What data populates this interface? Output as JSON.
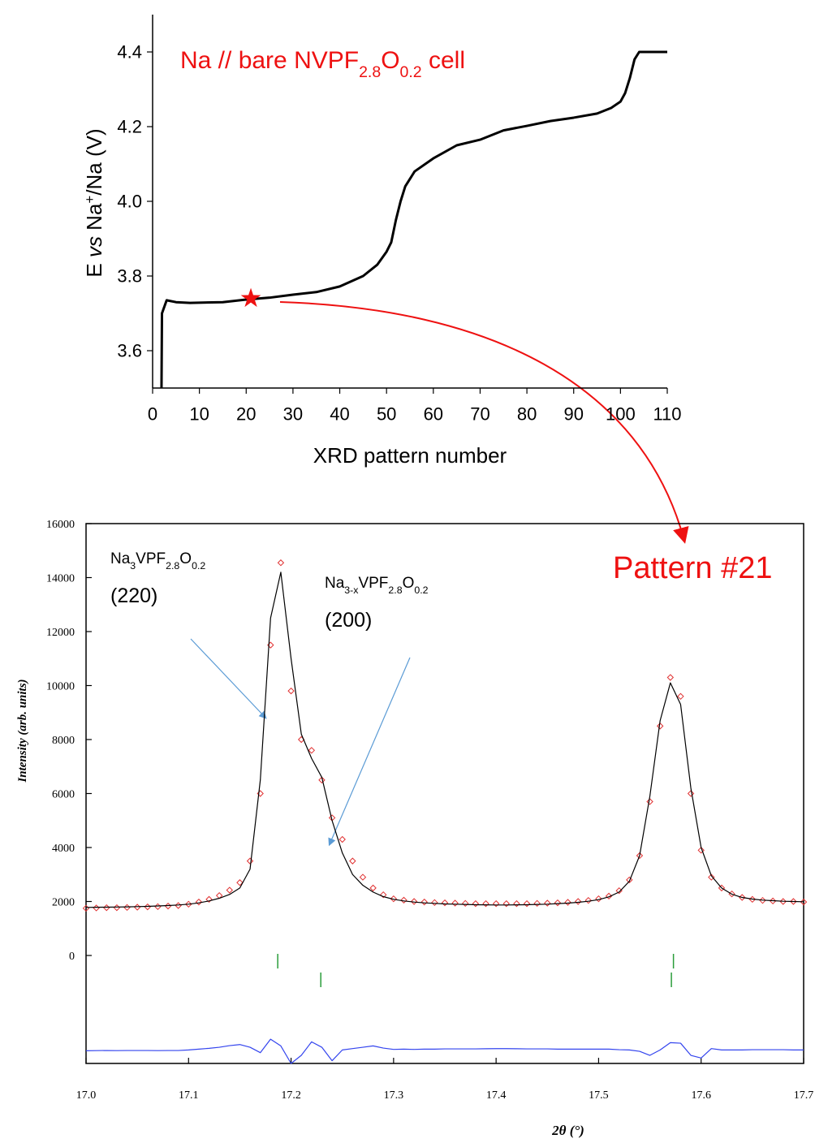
{
  "chart_data": [
    {
      "type": "line",
      "annotation": {
        "color": "#ee1111",
        "runs": [
          {
            "text": "Na // bare NVPF"
          },
          {
            "text": "2.8",
            "sub": true
          },
          {
            "text": "O"
          },
          {
            "text": "0.2",
            "sub": true
          },
          {
            "text": " cell"
          }
        ]
      },
      "x_label": "XRD pattern number",
      "y_label": {
        "runs": [
          {
            "text": "E "
          },
          {
            "text": "vs",
            "italic": true
          },
          {
            "text": " Na"
          },
          {
            "text": "+",
            "sup": true
          },
          {
            "text": "/Na (V)"
          }
        ]
      },
      "x": [
        1.9,
        2,
        3,
        5,
        8,
        15,
        20,
        25,
        30,
        35,
        40,
        45,
        48,
        50,
        51,
        52,
        53,
        54,
        56,
        60,
        65,
        70,
        75,
        80,
        85,
        90,
        95,
        98,
        100,
        101,
        102,
        103,
        104,
        110
      ],
      "series": [
        {
          "color": "#000000",
          "values": [
            3.5,
            3.7,
            3.735,
            3.73,
            3.728,
            3.73,
            3.737,
            3.742,
            3.75,
            3.757,
            3.772,
            3.8,
            3.83,
            3.865,
            3.89,
            3.95,
            4.0,
            4.04,
            4.08,
            4.115,
            4.15,
            4.165,
            4.19,
            4.202,
            4.215,
            4.224,
            4.235,
            4.25,
            4.267,
            4.29,
            4.33,
            4.38,
            4.4,
            4.4
          ]
        }
      ],
      "marker": {
        "x": 21,
        "y": 3.74,
        "color": "#ee1111"
      },
      "xlim": [
        0,
        110
      ],
      "xticks": [
        0,
        10,
        20,
        30,
        40,
        50,
        60,
        70,
        80,
        90,
        100,
        110
      ],
      "ylim": [
        3.5,
        4.5
      ],
      "yticks": [
        3.6,
        3.8,
        {
          "value": 4,
          "label": "4.0"
        },
        4.2,
        4.4
      ]
    },
    {
      "type": "line",
      "x_label": "2θ (°)",
      "y_label": "Intensity (arb. units)",
      "annotations": [
        {
          "color": "#000000",
          "runs": [
            {
              "text": "Na"
            },
            {
              "text": "3",
              "sub": true
            },
            {
              "text": "VPF"
            },
            {
              "text": "2.8",
              "sub": true
            },
            {
              "text": "O"
            },
            {
              "text": "0.2",
              "sub": true
            }
          ]
        },
        {
          "color": "#000000",
          "runs": [
            {
              "text": "(220)"
            }
          ]
        },
        {
          "color": "#000000",
          "runs": [
            {
              "text": "Na"
            },
            {
              "text": "3-x",
              "sub": true
            },
            {
              "text": "VPF"
            },
            {
              "text": "2.8",
              "sub": true
            },
            {
              "text": "O"
            },
            {
              "text": "0.2",
              "sub": true
            }
          ]
        },
        {
          "color": "#000000",
          "runs": [
            {
              "text": "(200)"
            }
          ]
        },
        {
          "color": "#ee1111",
          "runs": [
            {
              "text": "Pattern #21"
            }
          ]
        }
      ],
      "x": [
        17.0,
        17.01,
        17.02,
        17.03,
        17.04,
        17.05,
        17.06,
        17.07,
        17.08,
        17.09,
        17.1,
        17.11,
        17.12,
        17.13,
        17.14,
        17.15,
        17.16,
        17.17,
        17.18,
        17.19,
        17.2,
        17.21,
        17.22,
        17.23,
        17.24,
        17.25,
        17.26,
        17.27,
        17.28,
        17.29,
        17.3,
        17.31,
        17.32,
        17.33,
        17.34,
        17.35,
        17.36,
        17.37,
        17.38,
        17.39,
        17.4,
        17.41,
        17.42,
        17.43,
        17.44,
        17.45,
        17.46,
        17.47,
        17.48,
        17.49,
        17.5,
        17.51,
        17.52,
        17.53,
        17.54,
        17.55,
        17.56,
        17.57,
        17.58,
        17.59,
        17.6,
        17.61,
        17.62,
        17.63,
        17.64,
        17.65,
        17.66,
        17.67,
        17.68,
        17.69,
        17.7
      ],
      "series": [
        {
          "style": "markers",
          "color": "#e03030",
          "values": [
            1750,
            1760,
            1770,
            1770,
            1780,
            1790,
            1800,
            1810,
            1830,
            1850,
            1900,
            1980,
            2080,
            2220,
            2420,
            2700,
            3500,
            6000,
            11500,
            14550,
            9800,
            8000,
            7600,
            6500,
            5100,
            4300,
            3500,
            2900,
            2500,
            2250,
            2100,
            2050,
            2000,
            1980,
            1960,
            1950,
            1940,
            1930,
            1920,
            1920,
            1920,
            1920,
            1920,
            1920,
            1930,
            1940,
            1950,
            1970,
            2000,
            2040,
            2100,
            2200,
            2400,
            2800,
            3700,
            5700,
            8500,
            10300,
            9600,
            6000,
            3900,
            2900,
            2500,
            2280,
            2150,
            2080,
            2040,
            2020,
            2000,
            2000,
            1980
          ]
        },
        {
          "style": "line",
          "color": "#000000",
          "values": [
            1780,
            1785,
            1790,
            1795,
            1800,
            1810,
            1820,
            1835,
            1850,
            1870,
            1900,
            1950,
            2020,
            2120,
            2260,
            2500,
            3200,
            6500,
            12500,
            14200,
            11000,
            8200,
            7300,
            6600,
            5000,
            3800,
            3000,
            2600,
            2350,
            2180,
            2080,
            2020,
            1980,
            1950,
            1930,
            1910,
            1900,
            1890,
            1880,
            1875,
            1870,
            1870,
            1875,
            1880,
            1890,
            1900,
            1920,
            1940,
            1970,
            2010,
            2070,
            2170,
            2350,
            2750,
            3700,
            5900,
            8700,
            10100,
            9300,
            6200,
            4000,
            2950,
            2500,
            2270,
            2150,
            2090,
            2050,
            2030,
            2010,
            2000,
            1990
          ]
        },
        {
          "style": "line",
          "color": "#3344ee",
          "values": [
            -3530,
            -3525,
            -3520,
            -3525,
            -3520,
            -3520,
            -3520,
            -3525,
            -3520,
            -3520,
            -3500,
            -3470,
            -3440,
            -3400,
            -3340,
            -3300,
            -3400,
            -3600,
            -3100,
            -3350,
            -4000,
            -3700,
            -3200,
            -3400,
            -3900,
            -3500,
            -3450,
            -3400,
            -3350,
            -3430,
            -3480,
            -3470,
            -3480,
            -3470,
            -3470,
            -3460,
            -3460,
            -3460,
            -3460,
            -3455,
            -3450,
            -3450,
            -3455,
            -3460,
            -3460,
            -3460,
            -3470,
            -3470,
            -3470,
            -3470,
            -3470,
            -3470,
            -3490,
            -3500,
            -3550,
            -3700,
            -3500,
            -3230,
            -3250,
            -3700,
            -3800,
            -3450,
            -3500,
            -3500,
            -3500,
            -3490,
            -3490,
            -3490,
            -3490,
            -3500,
            -3500
          ]
        }
      ],
      "bragg_ticks": [
        {
          "color": "#2a9d3a",
          "positions": [
            17.187,
            17.573
          ]
        },
        {
          "color": "#2a9d3a",
          "positions": [
            17.229,
            17.571
          ]
        }
      ],
      "xlim": [
        17.0,
        17.7
      ],
      "xticks": [
        {
          "value": 17,
          "label": "17.0"
        },
        17.1,
        17.2,
        17.3,
        17.4,
        17.5,
        17.6,
        17.7
      ],
      "ylim": [
        -4000,
        16000
      ],
      "yticks": [
        0,
        2000,
        4000,
        6000,
        8000,
        10000,
        12000,
        14000,
        16000
      ]
    }
  ]
}
